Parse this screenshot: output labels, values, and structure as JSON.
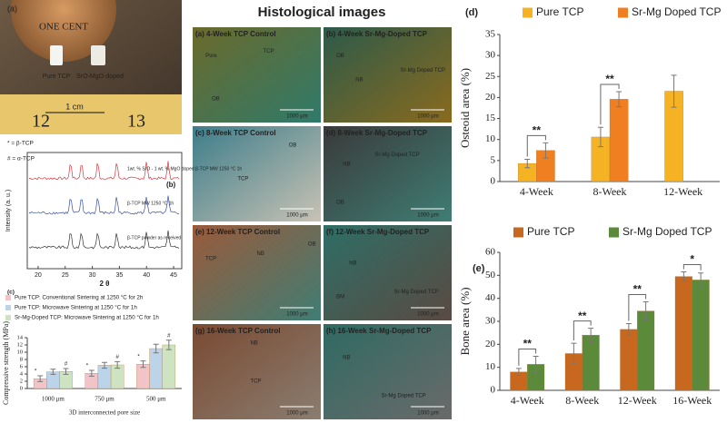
{
  "photo": {
    "panel": "(a)",
    "coin": "ONE CENT",
    "sample1": "Pure TCP",
    "sample2": "SrO-MgO-doped",
    "scale": "1 cm",
    "ruler": [
      "12",
      "13"
    ]
  },
  "histology": {
    "title": "Histological images",
    "scale": "1000 μm",
    "panels": [
      {
        "label": "(a) 4-Week TCP Control",
        "notes": [
          "Pore",
          "TCP",
          "OB"
        ]
      },
      {
        "label": "(b) 4-Week Sr-Mg-Doped TCP",
        "notes": [
          "OB",
          "NB",
          "Sr-Mg Doped TCP"
        ]
      },
      {
        "label": "(c) 8-Week TCP Control",
        "notes": [
          "TCP",
          "OB"
        ]
      },
      {
        "label": "(d) 8-Week Sr-Mg-Doped TCP",
        "notes": [
          "NB",
          "Sr-Mg Doped TCP",
          "OB"
        ]
      },
      {
        "label": "(e) 12-Week TCP Control",
        "notes": [
          "TCP",
          "NB",
          "OB"
        ]
      },
      {
        "label": "(f) 12-Week Sr-Mg-Doped TCP",
        "notes": [
          "NB",
          "Sr-Mg Doped TCP",
          "BM"
        ]
      },
      {
        "label": "(g) 16-Week TCP Control",
        "notes": [
          "NB",
          "TCP"
        ]
      },
      {
        "label": "(h) 16-Week Sr-Mg-Doped TCP",
        "notes": [
          "NB",
          "Sr-Mg Doped TCP"
        ]
      }
    ]
  },
  "chart_data": [
    {
      "type": "bar",
      "panel": "(d)",
      "ylabel": "Osteoid area (%)",
      "legend": "top",
      "categories": [
        "4-Week",
        "8-Week",
        "12-Week"
      ],
      "series": [
        {
          "name": "Pure TCP",
          "color": "#f5b324",
          "values": [
            4.3,
            10.6,
            21.5
          ],
          "errors": [
            1.0,
            2.3,
            3.8
          ]
        },
        {
          "name": "Sr-Mg Doped TCP",
          "color": "#f07f22",
          "values": [
            7.4,
            19.6,
            null
          ],
          "errors": [
            1.8,
            1.8,
            null
          ]
        }
      ],
      "annotations": [
        "**",
        "**",
        null
      ],
      "ylim": [
        0,
        35
      ],
      "yticks": [
        0,
        5,
        10,
        15,
        20,
        25,
        30,
        35
      ]
    },
    {
      "type": "bar",
      "panel": "(e)",
      "ylabel": "Bone area (%)",
      "legend": "top",
      "categories": [
        "4-Week",
        "8-Week",
        "12-Week",
        "16-Week"
      ],
      "series": [
        {
          "name": "Pure TCP",
          "color": "#c8681e",
          "values": [
            8,
            16,
            26.5,
            49.5
          ],
          "errors": [
            1.5,
            4.5,
            2.5,
            2
          ]
        },
        {
          "name": "Sr-Mg Doped TCP",
          "color": "#5a8a3a",
          "values": [
            11.3,
            24,
            34.5,
            48
          ],
          "errors": [
            3.5,
            3,
            4,
            3
          ]
        }
      ],
      "annotations": [
        "**",
        "**",
        "**",
        "*"
      ],
      "ylim": [
        0,
        60
      ],
      "yticks": [
        0,
        10,
        20,
        30,
        40,
        50,
        60
      ]
    },
    {
      "type": "bar",
      "panel": "(c)",
      "ylabel": "Compressive strength (MPa)",
      "xlabel": "3D interconnected pore size",
      "legend": "upper left",
      "categories": [
        "1000 μm",
        "750 μm",
        "500 μm"
      ],
      "series": [
        {
          "name": "Pure TCP: Conventional Sintering at 1250 °C for 2h",
          "color": "#f2c4c8",
          "values": [
            2.7,
            4.2,
            6.7
          ],
          "errors": [
            0.8,
            0.8,
            0.9
          ],
          "marks": [
            "*",
            "*",
            "*"
          ]
        },
        {
          "name": "Pure TCP: Microwave Sintering at 1250 °C for 1h",
          "color": "#bcd4ea",
          "values": [
            4.6,
            6.4,
            11
          ],
          "errors": [
            0.7,
            0.8,
            1.2
          ]
        },
        {
          "name": "Sr-Mg-Doped TCP: Microwave Sintering at 1250 °C for 1h",
          "color": "#cde3c2",
          "values": [
            4.7,
            6.5,
            12
          ],
          "errors": [
            0.8,
            0.9,
            1.3
          ],
          "marks": [
            "#",
            "#",
            "#"
          ]
        }
      ],
      "ylim": [
        0,
        14
      ],
      "yticks": [
        0,
        2,
        4,
        6,
        8,
        10,
        12,
        14
      ]
    },
    {
      "type": "spectrum",
      "panel": "(b)",
      "ylabel": "Intensity (a. u.)",
      "xlabel": "2 θ",
      "key": [
        "* = β-TCP",
        "# = α-TCP"
      ],
      "labels": [
        "1wt. % SrO - 1 wt. % MgO doped β-TCP MW 1250 °C 1h",
        "β-TCP MW 1250 °C 1h",
        "β-TCP powder as received"
      ],
      "colors": [
        "#d9363e",
        "#3b4fa8",
        "#333333"
      ],
      "xlim": [
        18,
        46.5
      ],
      "xticks": [
        20,
        25,
        30,
        35,
        40,
        45
      ]
    }
  ]
}
